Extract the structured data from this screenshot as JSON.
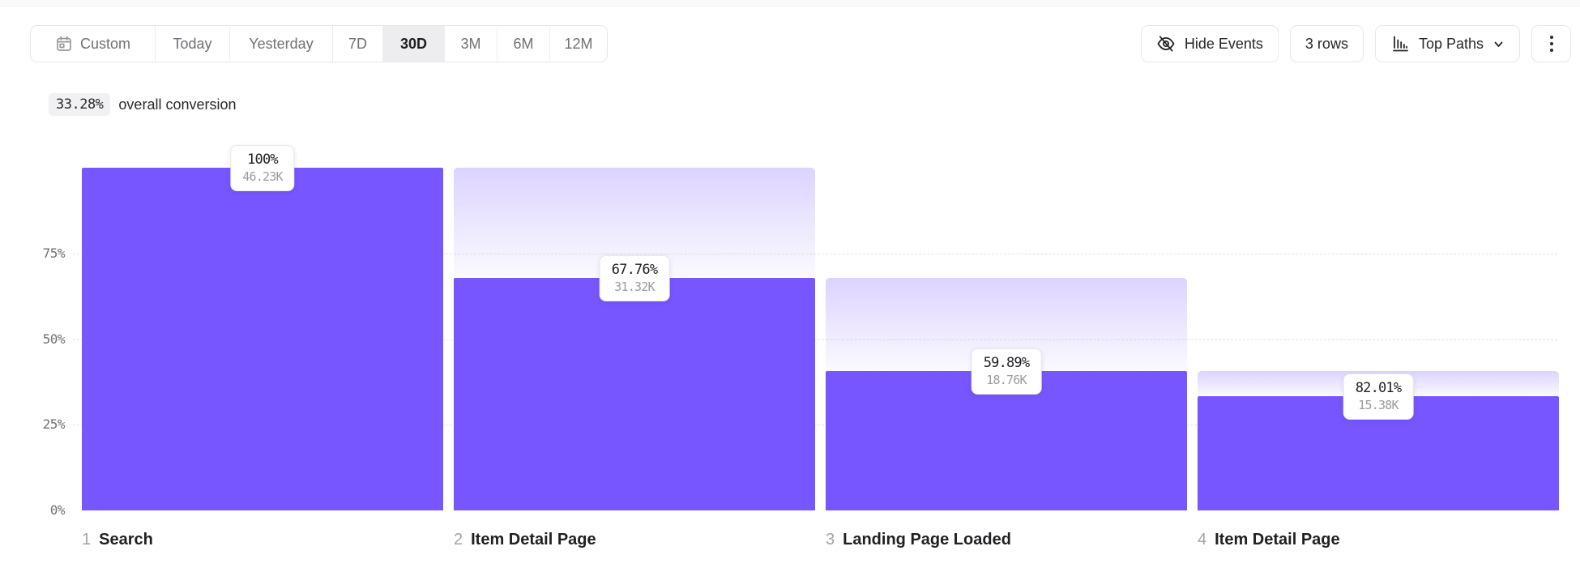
{
  "toolbar": {
    "date_ranges": [
      {
        "label": "Custom",
        "selected": false,
        "icon": "calendar-icon"
      },
      {
        "label": "Today",
        "selected": false
      },
      {
        "label": "Yesterday",
        "selected": false
      },
      {
        "label": "7D",
        "selected": false
      },
      {
        "label": "30D",
        "selected": true
      },
      {
        "label": "3M",
        "selected": false
      },
      {
        "label": "6M",
        "selected": false
      },
      {
        "label": "12M",
        "selected": false
      }
    ],
    "hide_events_label": "Hide Events",
    "rows_label": "3 rows",
    "top_paths_label": "Top Paths"
  },
  "summary": {
    "value": "33.28%",
    "text": "overall conversion"
  },
  "chart_data": {
    "type": "bar",
    "subtype": "funnel",
    "overall_conversion": "33.28%",
    "bar_color": "#7856FF",
    "ylim": [
      0,
      100
    ],
    "y_ticks": [
      {
        "label": "75%",
        "value": 75
      },
      {
        "label": "50%",
        "value": 50
      },
      {
        "label": "25%",
        "value": 25
      },
      {
        "label": "0%",
        "value": 0
      }
    ],
    "steps": [
      {
        "index": "1",
        "label": "Search",
        "conversion_pct": "100%",
        "count": "46.23K",
        "pct_of_total": 100
      },
      {
        "index": "2",
        "label": "Item Detail Page",
        "conversion_pct": "67.76%",
        "count": "31.32K",
        "pct_of_total": 67.76
      },
      {
        "index": "3",
        "label": "Landing Page Loaded",
        "conversion_pct": "59.89%",
        "count": "18.76K",
        "pct_of_total": 40.58
      },
      {
        "index": "4",
        "label": "Item Detail Page",
        "conversion_pct": "82.01%",
        "count": "15.38K",
        "pct_of_total": 33.27
      }
    ]
  }
}
